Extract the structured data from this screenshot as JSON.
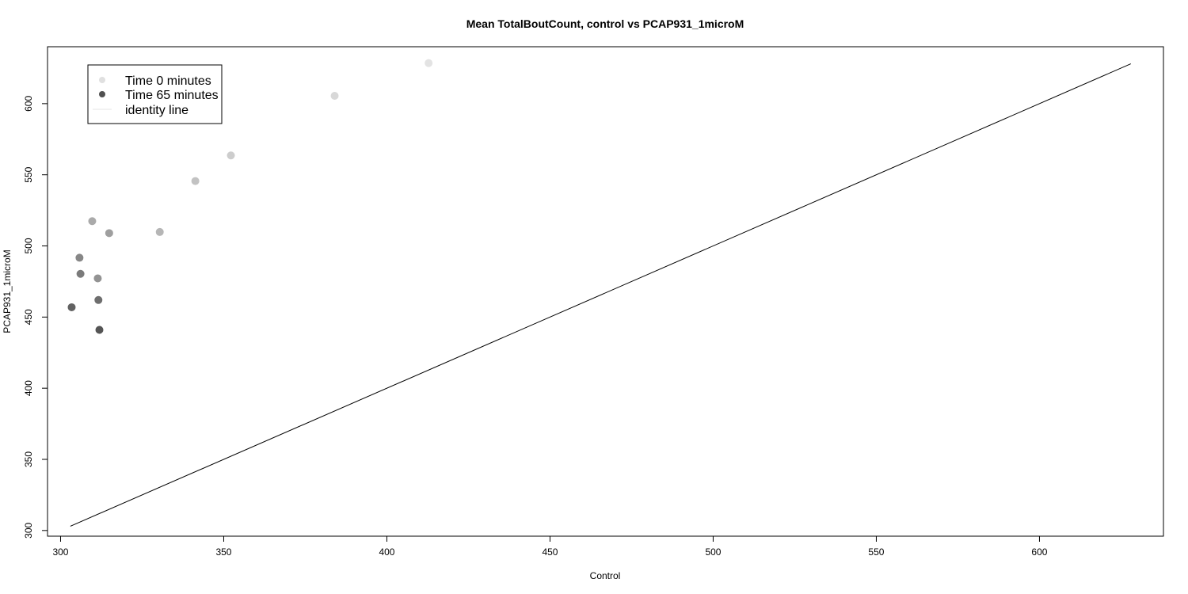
{
  "chart_data": {
    "type": "scatter",
    "title": "Mean TotalBoutCount, control vs PCAP931_1microM",
    "xlabel": "Control",
    "ylabel": "PCAP931_1microM",
    "xlim": [
      296,
      638
    ],
    "ylim": [
      296,
      640
    ],
    "xticks": [
      300,
      350,
      400,
      450,
      500,
      550,
      600
    ],
    "yticks": [
      300,
      350,
      400,
      450,
      500,
      550,
      600
    ],
    "legend": {
      "position": "top-left",
      "entries": [
        {
          "label": "Time 0 minutes",
          "kind": "point",
          "color": "#e0e0e0"
        },
        {
          "label": "Time 65 minutes",
          "kind": "point",
          "color": "#505050"
        },
        {
          "label": "identity line",
          "kind": "line",
          "color": "#e6e6e6"
        }
      ]
    },
    "identity_line": {
      "from": [
        303,
        303
      ],
      "to": [
        628,
        628
      ],
      "color": "#000000"
    },
    "points": [
      {
        "x": 412.8,
        "y": 628.5,
        "color": "#e3e3e3"
      },
      {
        "x": 384.0,
        "y": 605.5,
        "color": "#d8d8d8"
      },
      {
        "x": 352.2,
        "y": 563.6,
        "color": "#cdcdcd"
      },
      {
        "x": 341.3,
        "y": 545.6,
        "color": "#c2c2c2"
      },
      {
        "x": 330.4,
        "y": 509.8,
        "color": "#b6b6b6"
      },
      {
        "x": 309.7,
        "y": 517.4,
        "color": "#aaaaaa"
      },
      {
        "x": 314.9,
        "y": 509.0,
        "color": "#9f9f9f"
      },
      {
        "x": 311.4,
        "y": 477.2,
        "color": "#939393"
      },
      {
        "x": 305.8,
        "y": 491.7,
        "color": "#878787"
      },
      {
        "x": 306.1,
        "y": 480.4,
        "color": "#7b7b7b"
      },
      {
        "x": 311.6,
        "y": 462.0,
        "color": "#6e6e6e"
      },
      {
        "x": 303.4,
        "y": 456.9,
        "color": "#626262"
      },
      {
        "x": 311.9,
        "y": 441.0,
        "color": "#555555"
      }
    ]
  }
}
